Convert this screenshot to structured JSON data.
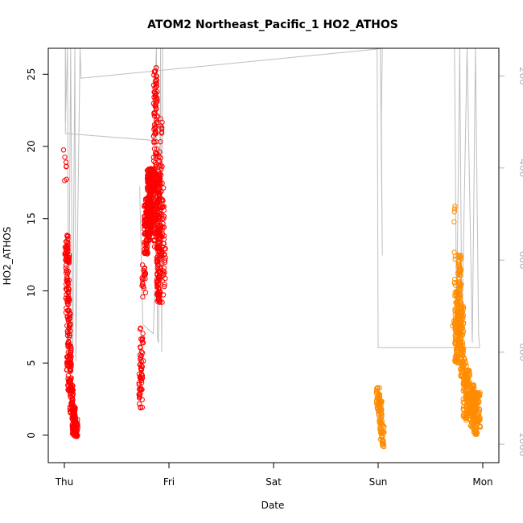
{
  "chart_data": {
    "type": "scatter",
    "title": "ATOM2 Northeast_Pacific_1 HO2_ATHOS",
    "xlabel": "Date",
    "ylabel": "HO2_ATHOS",
    "x_ticks": [
      "Thu",
      "Fri",
      "Sat",
      "Sun",
      "Mon"
    ],
    "y_ticks": [
      0,
      5,
      10,
      15,
      20,
      25
    ],
    "ylim": [
      -1.9,
      26.8
    ],
    "right_axis": {
      "ticks": [
        200,
        400,
        600,
        800,
        1000
      ],
      "lim": [
        1040,
        140
      ],
      "color": "#b3b3b3"
    },
    "grid": false,
    "colors": {
      "series1": "#ff0000",
      "series2": "#ff8c00",
      "profile": "#bebebe"
    },
    "series": [
      {
        "color": "#ff0000",
        "clusters": [
          {
            "x": 0.01,
            "y": [
              17.0,
              20.0
            ],
            "n": 7
          },
          {
            "x": 0.02,
            "y": [
              12.0,
              14.0
            ],
            "n": 30
          },
          {
            "x": 0.03,
            "y": [
              8.5,
              12.5
            ],
            "n": 60
          },
          {
            "x": 0.04,
            "y": [
              4.5,
              8.5
            ],
            "n": 50
          },
          {
            "x": 0.05,
            "y": [
              3.0,
              6.5
            ],
            "n": 50
          },
          {
            "x": 0.07,
            "y": [
              1.5,
              3.5
            ],
            "n": 50
          },
          {
            "x": 0.09,
            "y": [
              0.0,
              2.0
            ],
            "n": 60
          },
          {
            "x": 0.11,
            "y": [
              -0.1,
              1.1
            ],
            "n": 40
          },
          {
            "x": 0.73,
            "y": [
              1.9,
              5.0
            ],
            "n": 40
          },
          {
            "x": 0.74,
            "y": [
              5.0,
              7.5
            ],
            "n": 20
          },
          {
            "x": 0.76,
            "y": [
              9.5,
              12.0
            ],
            "n": 20
          },
          {
            "x": 0.78,
            "y": [
              12.5,
              16.5
            ],
            "n": 80
          },
          {
            "x": 0.81,
            "y": [
              13.5,
              18.5
            ],
            "n": 150
          },
          {
            "x": 0.84,
            "y": [
              14.0,
              18.5
            ],
            "n": 120
          },
          {
            "x": 0.87,
            "y": [
              13.0,
              25.7
            ],
            "n": 120
          },
          {
            "x": 0.9,
            "y": [
              9.0,
              18.5
            ],
            "n": 140
          },
          {
            "x": 0.92,
            "y": [
              11.0,
              22.0
            ],
            "n": 50
          },
          {
            "x": 0.95,
            "y": [
              9.0,
              17.5
            ],
            "n": 40
          }
        ]
      },
      {
        "color": "#ff8c00",
        "clusters": [
          {
            "x": 3.0,
            "y": [
              1.5,
              3.3
            ],
            "n": 40
          },
          {
            "x": 3.02,
            "y": [
              0.0,
              2.5
            ],
            "n": 40
          },
          {
            "x": 3.04,
            "y": [
              -0.8,
              1.0
            ],
            "n": 30
          },
          {
            "x": 3.73,
            "y": [
              7.0,
              16.2
            ],
            "n": 15
          },
          {
            "x": 3.75,
            "y": [
              5.0,
              10.0
            ],
            "n": 100
          },
          {
            "x": 3.78,
            "y": [
              6.0,
              12.5
            ],
            "n": 100
          },
          {
            "x": 3.8,
            "y": [
              4.0,
              9.0
            ],
            "n": 80
          },
          {
            "x": 3.83,
            "y": [
              1.0,
              5.5
            ],
            "n": 60
          },
          {
            "x": 3.86,
            "y": [
              1.5,
              4.5
            ],
            "n": 60
          },
          {
            "x": 3.9,
            "y": [
              0.5,
              3.5
            ],
            "n": 80
          },
          {
            "x": 3.93,
            "y": [
              0.0,
              3.0
            ],
            "n": 60
          },
          {
            "x": 3.96,
            "y": [
              0.5,
              3.0
            ],
            "n": 40
          }
        ]
      }
    ],
    "profile_line": [
      [
        0.01,
        140
      ],
      [
        0.01,
        300
      ],
      [
        0.03,
        140
      ],
      [
        0.04,
        820
      ],
      [
        0.06,
        140
      ],
      [
        0.08,
        840
      ],
      [
        0.1,
        140
      ],
      [
        0.11,
        820
      ],
      [
        0.15,
        140
      ],
      [
        0.16,
        205
      ],
      [
        2.98,
        142
      ],
      [
        3.04,
        140
      ],
      [
        3.03,
        290
      ],
      [
        3.04,
        590
      ],
      [
        3.02,
        140
      ],
      [
        2.99,
        140
      ],
      [
        3.0,
        790
      ],
      [
        3.97,
        790
      ],
      [
        3.96,
        760
      ],
      [
        3.93,
        140
      ],
      [
        3.9,
        780
      ],
      [
        3.85,
        140
      ],
      [
        3.8,
        760
      ],
      [
        3.78,
        140
      ],
      [
        3.75,
        740
      ],
      [
        3.73,
        140
      ]
    ],
    "profile_line_2": [
      [
        0.01,
        140
      ],
      [
        0.01,
        325
      ],
      [
        0.85,
        340
      ],
      [
        0.88,
        140
      ],
      [
        0.89,
        770
      ],
      [
        0.9,
        780
      ],
      [
        0.92,
        140
      ],
      [
        0.93,
        800
      ],
      [
        0.94,
        140
      ]
    ],
    "profile_line_3": [
      [
        0.72,
        440
      ],
      [
        0.75,
        740
      ],
      [
        0.85,
        760
      ],
      [
        0.88,
        560
      ]
    ]
  }
}
